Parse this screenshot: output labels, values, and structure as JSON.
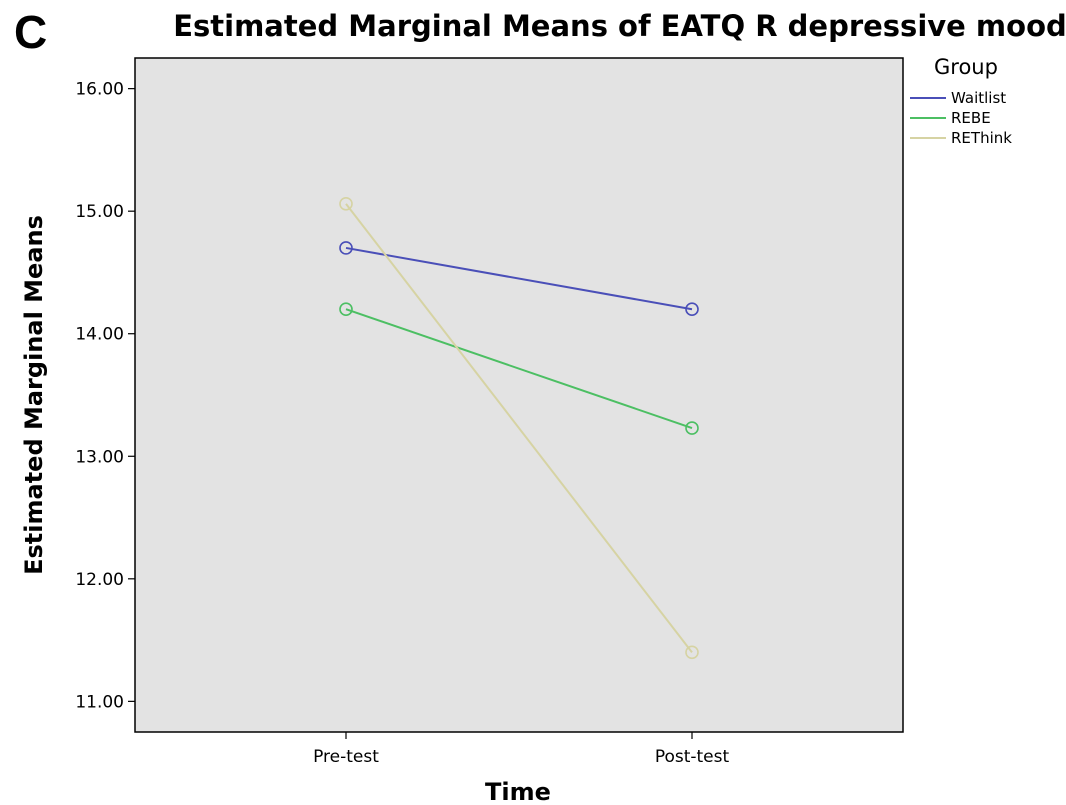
{
  "panel_label": "C",
  "chart_data": {
    "type": "line",
    "title": "Estimated Marginal Means of EATQ R depressive mood",
    "xlabel": "Time",
    "ylabel": "Estimated Marginal Means",
    "categories": [
      "Pre-test",
      "Post-test"
    ],
    "ylim": [
      10.75,
      16.25
    ],
    "yticks": [
      "11.00",
      "12.00",
      "13.00",
      "14.00",
      "15.00",
      "16.00"
    ],
    "grid": false,
    "legend": {
      "title": "Group",
      "position": "right"
    },
    "series": [
      {
        "name": "Waitlist",
        "values": [
          14.7,
          14.2
        ],
        "color": "#4a4fb8"
      },
      {
        "name": "REBE",
        "values": [
          14.2,
          13.23
        ],
        "color": "#4cbf63"
      },
      {
        "name": "REThink",
        "values": [
          15.06,
          11.4
        ],
        "color": "#d6d3a3"
      }
    ]
  }
}
